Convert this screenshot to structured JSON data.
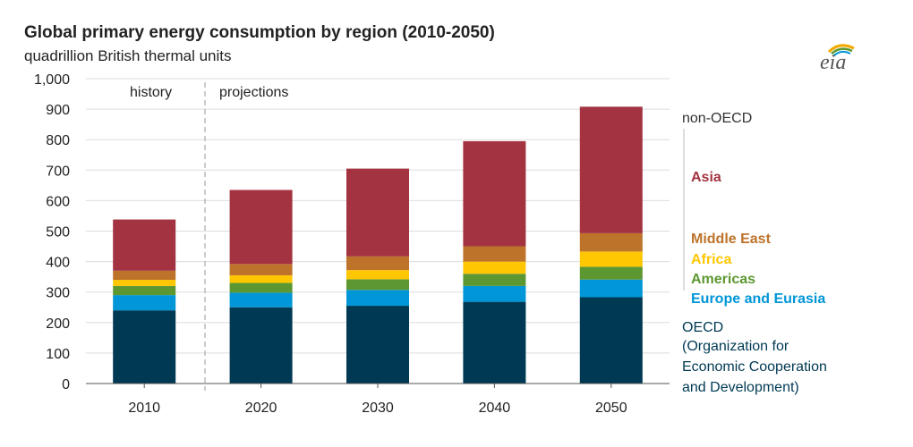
{
  "header": {
    "title": "Global primary energy consumption by region (2010-2050)",
    "subtitle": "quadrillion British thermal units",
    "logo_text": "eia"
  },
  "annotations": {
    "history": "history",
    "projections": "projections"
  },
  "legend": {
    "non_oecd": "non-OECD",
    "asia": "Asia",
    "middle_east": "Middle East",
    "africa": "Africa",
    "americas": "Americas",
    "europe_eurasia": "Europe and Eurasia",
    "oecd_line1": "OECD",
    "oecd_line2": "(Organization for",
    "oecd_line3": "Economic Cooperation",
    "oecd_line4": "and Development)"
  },
  "colors": {
    "oecd": "#003953",
    "europe_eurasia": "#0096d7",
    "americas": "#5d9732",
    "africa": "#ffc702",
    "middle_east": "#bd732a",
    "asia": "#a33340",
    "non_oecd_text": "#333333",
    "grid": "#dddddd",
    "divider": "#999999"
  },
  "chart_data": {
    "type": "bar",
    "stacked": true,
    "categories": [
      "2010",
      "2020",
      "2030",
      "2040",
      "2050"
    ],
    "ylim": [
      0,
      1000
    ],
    "yticks": [
      0,
      100,
      200,
      300,
      400,
      500,
      600,
      700,
      800,
      900,
      1000
    ],
    "ytick_labels": [
      "0",
      "100",
      "200",
      "300",
      "400",
      "500",
      "600",
      "700",
      "800",
      "900",
      "1,000"
    ],
    "grid": true,
    "series": [
      {
        "name": "OECD",
        "key": "oecd",
        "values": [
          240,
          250,
          255,
          268,
          283
        ]
      },
      {
        "name": "Europe and Eurasia",
        "key": "europe_eurasia",
        "values": [
          50,
          48,
          52,
          52,
          58
        ]
      },
      {
        "name": "Americas",
        "key": "americas",
        "values": [
          30,
          32,
          35,
          40,
          42
        ]
      },
      {
        "name": "Africa",
        "key": "africa",
        "values": [
          20,
          25,
          30,
          40,
          50
        ]
      },
      {
        "name": "Middle East",
        "key": "middle_east",
        "values": [
          30,
          37,
          45,
          50,
          60
        ]
      },
      {
        "name": "Asia",
        "key": "asia",
        "values": [
          168,
          243,
          288,
          345,
          415
        ]
      }
    ]
  }
}
